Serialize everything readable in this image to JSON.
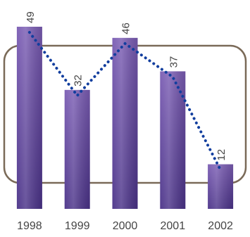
{
  "chart_data": {
    "type": "bar",
    "categories": [
      "1998",
      "1999",
      "2000",
      "2001",
      "2002"
    ],
    "values": [
      49,
      32,
      46,
      37,
      12
    ],
    "data_labels": [
      "49",
      "32",
      "46",
      "37",
      "12"
    ],
    "trend_line": {
      "style": "dotted",
      "values": [
        49,
        32,
        46,
        37,
        12
      ]
    },
    "title": "",
    "xlabel": "",
    "ylabel": "",
    "ylim": [
      0,
      49
    ],
    "grid": false,
    "legend": "none",
    "colors": {
      "bar_fill_top": "#7a5cb3",
      "bar_fill_bottom": "#4a3288",
      "bar_highlight": "#9b82cc",
      "trend_line": "#123e9e",
      "frame_stroke": "#7a6a58",
      "label_text": "#444444"
    }
  }
}
